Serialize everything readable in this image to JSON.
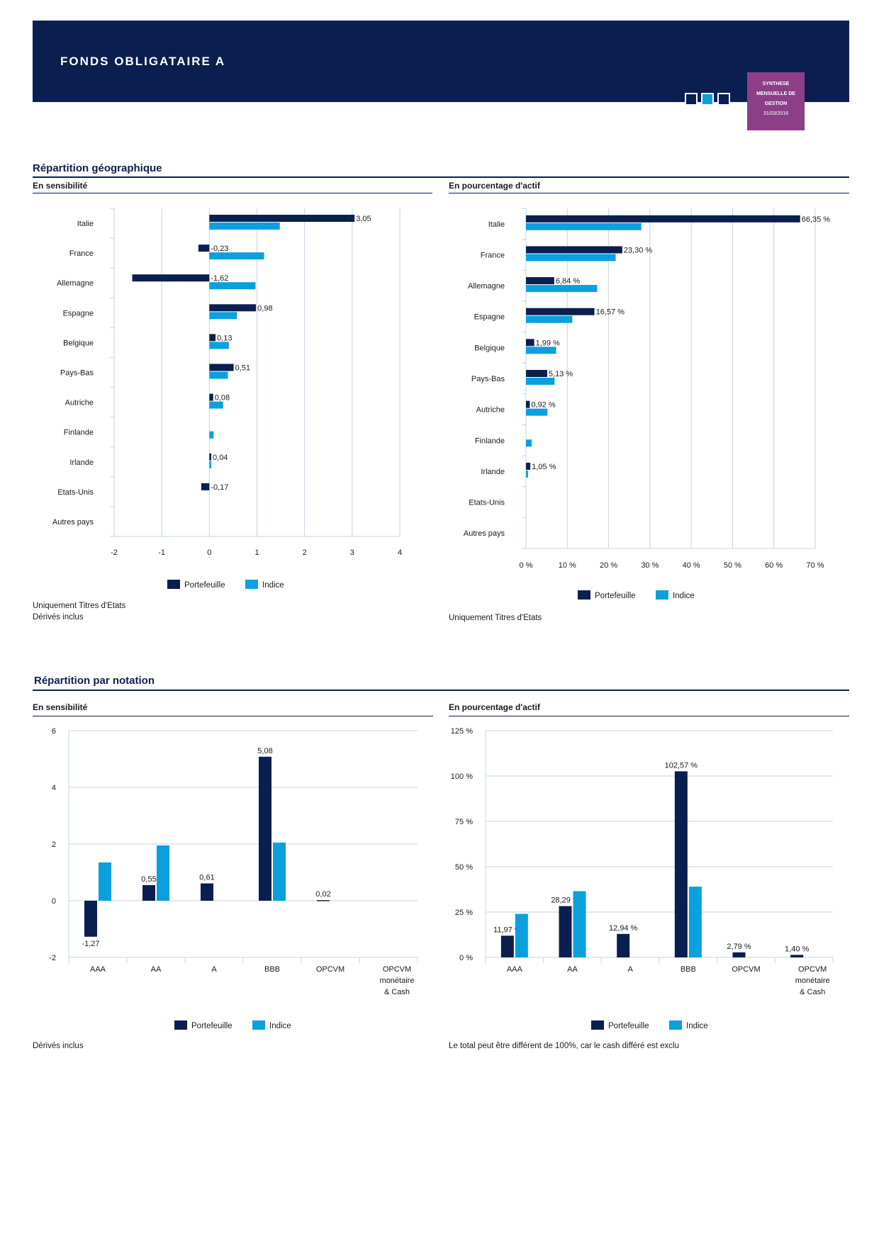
{
  "header": {
    "title": "FONDS OBLIGATAIRE A",
    "badge_line1": "SYNTHESE",
    "badge_line2": "MENSUELLE DE",
    "badge_line3": "GESTION",
    "badge_date": "31/03/2016"
  },
  "colors": {
    "navy": "#0a1f4f",
    "blue": "#0aa0de",
    "purple": "#8c3f87",
    "grid": "#c9d3e0"
  },
  "geo": {
    "title": "Répartition géographique",
    "sens_subtitle": "En sensibilité",
    "pct_subtitle": "En pourcentage d'actif",
    "sens_note1": "Uniquement Titres d'Etats",
    "sens_note2": "Dérivés inclus",
    "pct_note1": "Uniquement Titres d'Etats"
  },
  "rating": {
    "title": "Répartition par notation",
    "sens_subtitle": "En sensibilité",
    "pct_subtitle": "En pourcentage d'actif",
    "sens_note1": "Dérivés inclus",
    "pct_note1": "Le total peut être différent de 100%, car le cash différé est exclu"
  },
  "legend": {
    "portefeuille": "Portefeuille",
    "indice": "Indice"
  },
  "chart_data": [
    {
      "id": "geo_sens",
      "type": "bar",
      "orientation": "horizontal",
      "categories": [
        "Italie",
        "France",
        "Allemagne",
        "Espagne",
        "Belgique",
        "Pays-Bas",
        "Autriche",
        "Finlande",
        "Irlande",
        "Etats-Unis",
        "Autres pays"
      ],
      "series": [
        {
          "name": "Portefeuille",
          "values": [
            3.05,
            -0.23,
            -1.62,
            0.98,
            0.13,
            0.51,
            0.08,
            null,
            0.04,
            -0.17,
            null
          ],
          "labels": [
            "3,05",
            "-0,23",
            "-1,62",
            "0,98",
            "0,13",
            "0,51",
            "0,08",
            "",
            "0,04",
            "-0,17",
            ""
          ]
        },
        {
          "name": "Indice",
          "values": [
            1.48,
            1.15,
            0.97,
            0.58,
            0.41,
            0.39,
            0.29,
            0.09,
            0.04,
            null,
            null
          ]
        }
      ],
      "xlim": [
        -2,
        4
      ],
      "xticks": [
        "-2",
        "-1",
        "0",
        "1",
        "2",
        "3",
        "4"
      ],
      "legend": "bottom",
      "grid": true
    },
    {
      "id": "geo_pct",
      "type": "bar",
      "orientation": "horizontal",
      "categories": [
        "Italie",
        "France",
        "Allemagne",
        "Espagne",
        "Belgique",
        "Pays-Bas",
        "Autriche",
        "Finlande",
        "Irlande",
        "Etats-Unis",
        "Autres pays"
      ],
      "series": [
        {
          "name": "Portefeuille",
          "values": [
            66.35,
            23.3,
            6.84,
            16.57,
            1.99,
            5.13,
            0.92,
            null,
            1.05,
            null,
            null
          ],
          "labels": [
            "66,35 %",
            "23,30 %",
            "6,84 %",
            "16,57 %",
            "1,99 %",
            "5,13 %",
            "0,92 %",
            "",
            "1,05 %",
            "",
            ""
          ]
        },
        {
          "name": "Indice",
          "values": [
            27.9,
            21.7,
            17.2,
            11.2,
            7.3,
            6.9,
            5.2,
            1.4,
            0.5,
            null,
            null
          ]
        }
      ],
      "xlim": [
        0,
        70
      ],
      "xticks": [
        "0 %",
        "10 %",
        "20 %",
        "30 %",
        "40 %",
        "50 %",
        "60 %",
        "70 %"
      ],
      "legend": "bottom",
      "grid": true
    },
    {
      "id": "rating_sens",
      "type": "bar",
      "orientation": "vertical",
      "categories": [
        "AAA",
        "AA",
        "A",
        "BBB",
        "OPCVM",
        "OPCVM monétaire & Cash"
      ],
      "category_lines": [
        [
          "AAA"
        ],
        [
          "AA"
        ],
        [
          "A"
        ],
        [
          "BBB"
        ],
        [
          "OPCVM"
        ],
        [
          "OPCVM",
          "monétaire",
          "&  Cash"
        ]
      ],
      "series": [
        {
          "name": "Portefeuille",
          "values": [
            -1.27,
            0.55,
            0.61,
            5.08,
            0.02,
            null
          ],
          "labels": [
            "-1,27",
            "0,55",
            "0,61",
            "5,08",
            "0,02",
            ""
          ]
        },
        {
          "name": "Indice",
          "values": [
            1.35,
            1.95,
            null,
            2.05,
            null,
            null
          ]
        }
      ],
      "ylim": [
        -2,
        6
      ],
      "yticks": [
        "-2",
        "0",
        "2",
        "4",
        "6"
      ],
      "legend": "bottom",
      "grid": true
    },
    {
      "id": "rating_pct",
      "type": "bar",
      "orientation": "vertical",
      "categories": [
        "AAA",
        "AA",
        "A",
        "BBB",
        "OPCVM",
        "OPCVM monétaire & Cash"
      ],
      "category_lines": [
        [
          "AAA"
        ],
        [
          "AA"
        ],
        [
          "A"
        ],
        [
          "BBB"
        ],
        [
          "OPCVM"
        ],
        [
          "OPCVM",
          "monétaire",
          "&  Cash"
        ]
      ],
      "series": [
        {
          "name": "Portefeuille",
          "values": [
            11.97,
            28.29,
            12.94,
            102.57,
            2.79,
            1.4
          ],
          "labels": [
            "11,97 %",
            "28,29 %",
            "12,94 %",
            "102,57 %",
            "2,79 %",
            "1,40 %"
          ]
        },
        {
          "name": "Indice",
          "values": [
            24,
            36.5,
            null,
            39,
            null,
            null
          ]
        }
      ],
      "ylim": [
        0,
        125
      ],
      "yticks": [
        "0 %",
        "25 %",
        "50 %",
        "75 %",
        "100 %",
        "125 %"
      ],
      "legend": "bottom",
      "grid": true
    }
  ]
}
